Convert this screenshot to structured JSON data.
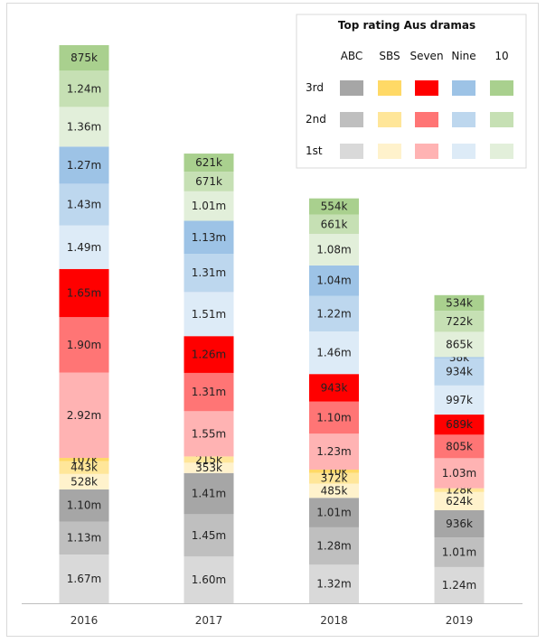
{
  "chart_data": {
    "type": "bar",
    "stacked": true,
    "title": "Top rating Aus dramas",
    "categories": [
      "2016",
      "2017",
      "2018",
      "2019"
    ],
    "networks": [
      "ABC",
      "SBS",
      "Seven",
      "Nine",
      "10"
    ],
    "ranks": [
      "1st",
      "2nd",
      "3rd"
    ],
    "legend_position": "top-right",
    "grid": false,
    "colors": {
      "ABC": {
        "1st": "#d9d9d9",
        "2nd": "#bfbfbf",
        "3rd": "#a6a6a6"
      },
      "SBS": {
        "1st": "#fff2cc",
        "2nd": "#ffe699",
        "3rd": "#ffd966"
      },
      "Seven": {
        "1st": "#ffb3b3",
        "2nd": "#ff7575",
        "3rd": "#ff0000"
      },
      "Nine": {
        "1st": "#ddebf7",
        "2nd": "#bdd7ee",
        "3rd": "#9dc3e6"
      },
      "10": {
        "1st": "#e2efda",
        "2nd": "#c6e0b4",
        "3rd": "#a9d08e"
      }
    },
    "series": [
      {
        "network": "ABC",
        "rank": "1st",
        "values": [
          1670000,
          1600000,
          1320000,
          1240000
        ],
        "labels": [
          "1.67m",
          "1.60m",
          "1.32m",
          "1.24m"
        ]
      },
      {
        "network": "ABC",
        "rank": "2nd",
        "values": [
          1130000,
          1450000,
          1280000,
          1010000
        ],
        "labels": [
          "1.13m",
          "1.45m",
          "1.28m",
          "1.01m"
        ]
      },
      {
        "network": "ABC",
        "rank": "3rd",
        "values": [
          1100000,
          1410000,
          1010000,
          936000
        ],
        "labels": [
          "1.10m",
          "1.41m",
          "1.01m",
          "936k"
        ]
      },
      {
        "network": "SBS",
        "rank": "1st",
        "values": [
          528000,
          353000,
          485000,
          624000
        ],
        "labels": [
          "528k",
          "353k",
          "485k",
          "624k"
        ]
      },
      {
        "network": "SBS",
        "rank": "2nd",
        "values": [
          443000,
          215000,
          372000,
          128000
        ],
        "labels": [
          "443k",
          "215k",
          "372k",
          "128k"
        ]
      },
      {
        "network": "SBS",
        "rank": "3rd",
        "values": [
          107000,
          0,
          110000,
          0
        ],
        "labels": [
          "107k",
          "",
          "110k",
          ""
        ]
      },
      {
        "network": "Seven",
        "rank": "1st",
        "values": [
          2920000,
          1550000,
          1230000,
          1030000
        ],
        "labels": [
          "2.92m",
          "1.55m",
          "1.23m",
          "1.03m"
        ]
      },
      {
        "network": "Seven",
        "rank": "2nd",
        "values": [
          1900000,
          1310000,
          1100000,
          805000
        ],
        "labels": [
          "1.90m",
          "1.31m",
          "1.10m",
          "805k"
        ]
      },
      {
        "network": "Seven",
        "rank": "3rd",
        "values": [
          1650000,
          1260000,
          943000,
          689000
        ],
        "labels": [
          "1.65m",
          "1.26m",
          "943k",
          "689k"
        ]
      },
      {
        "network": "Nine",
        "rank": "1st",
        "values": [
          1490000,
          1510000,
          1460000,
          997000
        ],
        "labels": [
          "1.49m",
          "1.51m",
          "1.46m",
          "997k"
        ]
      },
      {
        "network": "Nine",
        "rank": "2nd",
        "values": [
          1430000,
          1310000,
          1220000,
          934000
        ],
        "labels": [
          "1.43m",
          "1.31m",
          "1.22m",
          "934k"
        ]
      },
      {
        "network": "Nine",
        "rank": "3rd",
        "values": [
          1270000,
          1130000,
          1040000,
          38000
        ],
        "labels": [
          "1.27m",
          "1.13m",
          "1.04m",
          "38k"
        ]
      },
      {
        "network": "10",
        "rank": "1st",
        "values": [
          1360000,
          1010000,
          1080000,
          865000
        ],
        "labels": [
          "1.36m",
          "1.01m",
          "1.08m",
          "865k"
        ]
      },
      {
        "network": "10",
        "rank": "2nd",
        "values": [
          1240000,
          671000,
          661000,
          722000
        ],
        "labels": [
          "1.24m",
          "671k",
          "661k",
          "722k"
        ]
      },
      {
        "network": "10",
        "rank": "3rd",
        "values": [
          875000,
          621000,
          554000,
          534000
        ],
        "labels": [
          "875k",
          "621k",
          "554k",
          "534k"
        ]
      }
    ]
  }
}
